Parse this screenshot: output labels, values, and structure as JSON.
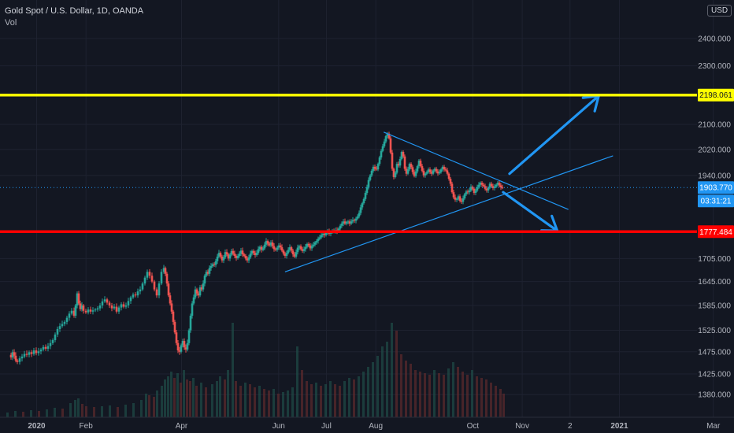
{
  "header": {
    "symbol_line": "Gold Spot / U.S. Dollar, 1D, OANDA",
    "volume_label": "Vol"
  },
  "currency_badge": "USD",
  "colors": {
    "background": "#131722",
    "up_candle": "#26a69a",
    "down_candle": "#ef5350",
    "resistance": "#ffff00",
    "support": "#ff0000",
    "trendline": "#2196f3",
    "arrow": "#2196f3",
    "current_price": "#2196f3"
  },
  "chart_data": {
    "type": "candlestick",
    "title": "Gold Spot / U.S. Dollar, 1D, OANDA",
    "y_scale": "log",
    "y_ticks": [
      2400,
      2300,
      2198.061,
      2100,
      2020,
      1940,
      1903.77,
      1777.484,
      1705,
      1645,
      1585,
      1525,
      1475,
      1425,
      1380
    ],
    "y_tick_labels": [
      "2400.000",
      "2300.000",
      "2198.061",
      "2100.000",
      "2020.000",
      "1940.000",
      "1903.770",
      "1777.484",
      "1705.000",
      "1645.000",
      "1585.000",
      "1525.000",
      "1475.000",
      "1425.000",
      "1380.000"
    ],
    "x_ticks": [
      "2020",
      "Feb",
      "Apr",
      "Jun",
      "Jul",
      "Aug",
      "Oct",
      "Nov",
      "2",
      "2021",
      "Mar"
    ],
    "x_tick_dates": [
      "2020-01-01",
      "2020-02-01",
      "2020-04-01",
      "2020-06-01",
      "2020-07-01",
      "2020-08-01",
      "2020-10-01",
      "2020-11-01",
      "2020-12-01",
      "2021-01-01",
      "2021-03-01"
    ],
    "date_range": [
      "2019-12-09",
      "2021-03-14"
    ],
    "levels": [
      {
        "label": "2198.061",
        "value": 2198.061,
        "color": "#ffff00"
      },
      {
        "label": "1777.484",
        "value": 1777.484,
        "color": "#ff0000"
      }
    ],
    "current_price": {
      "label": "1903.770",
      "value": 1903.77,
      "countdown": "03:31:21"
    },
    "trendlines": [
      {
        "from": {
          "date": "2020-08-06",
          "price": 2075
        },
        "to": {
          "date": "2020-11-30",
          "price": 1840
        }
      },
      {
        "from": {
          "date": "2020-06-05",
          "price": 1670
        },
        "to": {
          "date": "2020-12-28",
          "price": 2000
        }
      }
    ],
    "arrows": [
      {
        "from": {
          "date": "2020-10-24",
          "price": 1945
        },
        "to": {
          "date": "2020-12-19",
          "price": 2195
        }
      },
      {
        "from": {
          "date": "2020-10-20",
          "price": 1890
        },
        "to": {
          "date": "2020-11-23",
          "price": 1780
        }
      }
    ],
    "price_path": [
      [
        12,
        1468
      ],
      [
        14,
        1462
      ],
      [
        16,
        1474
      ],
      [
        18,
        1466
      ],
      [
        20,
        1455
      ],
      [
        22,
        1452
      ],
      [
        25,
        1460
      ],
      [
        28,
        1464
      ],
      [
        31,
        1470
      ],
      [
        34,
        1468
      ],
      [
        37,
        1474
      ],
      [
        40,
        1470
      ],
      [
        43,
        1478
      ],
      [
        46,
        1472
      ],
      [
        49,
        1476
      ],
      [
        52,
        1480
      ],
      [
        55,
        1486
      ],
      [
        58,
        1482
      ],
      [
        61,
        1488
      ],
      [
        64,
        1495
      ],
      [
        67,
        1502
      ],
      [
        70,
        1515
      ],
      [
        73,
        1528
      ],
      [
        76,
        1535
      ],
      [
        79,
        1540
      ],
      [
        82,
        1545
      ],
      [
        85,
        1555
      ],
      [
        88,
        1565
      ],
      [
        91,
        1572
      ],
      [
        94,
        1560
      ],
      [
        96,
        1585
      ],
      [
        98,
        1615
      ],
      [
        100,
        1590
      ],
      [
        102,
        1576
      ],
      [
        104,
        1585
      ],
      [
        106,
        1572
      ],
      [
        109,
        1568
      ],
      [
        112,
        1575
      ],
      [
        115,
        1570
      ],
      [
        118,
        1573
      ],
      [
        121,
        1575
      ],
      [
        124,
        1578
      ],
      [
        127,
        1585
      ],
      [
        130,
        1595
      ],
      [
        133,
        1600
      ],
      [
        136,
        1592
      ],
      [
        139,
        1585
      ],
      [
        142,
        1578
      ],
      [
        145,
        1582
      ],
      [
        148,
        1570
      ],
      [
        151,
        1580
      ],
      [
        154,
        1588
      ],
      [
        157,
        1582
      ],
      [
        160,
        1585
      ],
      [
        163,
        1596
      ],
      [
        166,
        1605
      ],
      [
        169,
        1612
      ],
      [
        172,
        1610
      ],
      [
        175,
        1620
      ],
      [
        178,
        1625
      ],
      [
        181,
        1640
      ],
      [
        184,
        1655
      ],
      [
        187,
        1670
      ],
      [
        190,
        1660
      ],
      [
        193,
        1645
      ],
      [
        196,
        1625
      ],
      [
        199,
        1610
      ],
      [
        202,
        1640
      ],
      [
        205,
        1670
      ],
      [
        208,
        1680
      ],
      [
        210,
        1665
      ],
      [
        212,
        1640
      ],
      [
        214,
        1610
      ],
      [
        216,
        1590
      ],
      [
        218,
        1570
      ],
      [
        220,
        1545
      ],
      [
        222,
        1520
      ],
      [
        224,
        1495
      ],
      [
        226,
        1478
      ],
      [
        228,
        1475
      ],
      [
        230,
        1490
      ],
      [
        232,
        1500
      ],
      [
        234,
        1485
      ],
      [
        236,
        1480
      ],
      [
        238,
        1495
      ],
      [
        240,
        1525
      ],
      [
        242,
        1560
      ],
      [
        244,
        1590
      ],
      [
        246,
        1605
      ],
      [
        248,
        1625
      ],
      [
        250,
        1615
      ],
      [
        252,
        1610
      ],
      [
        254,
        1630
      ],
      [
        256,
        1625
      ],
      [
        258,
        1640
      ],
      [
        260,
        1660
      ],
      [
        262,
        1670
      ],
      [
        264,
        1665
      ],
      [
        266,
        1680
      ],
      [
        268,
        1685
      ],
      [
        270,
        1690
      ],
      [
        272,
        1688
      ],
      [
        274,
        1698
      ],
      [
        276,
        1710
      ],
      [
        278,
        1720
      ],
      [
        280,
        1710
      ],
      [
        282,
        1700
      ],
      [
        284,
        1708
      ],
      [
        286,
        1722
      ],
      [
        288,
        1716
      ],
      [
        290,
        1705
      ],
      [
        292,
        1715
      ],
      [
        294,
        1725
      ],
      [
        296,
        1718
      ],
      [
        298,
        1712
      ],
      [
        300,
        1706
      ],
      [
        302,
        1712
      ],
      [
        304,
        1718
      ],
      [
        306,
        1726
      ],
      [
        308,
        1716
      ],
      [
        310,
        1712
      ],
      [
        312,
        1705
      ],
      [
        314,
        1700
      ],
      [
        316,
        1708
      ],
      [
        318,
        1718
      ],
      [
        320,
        1725
      ],
      [
        322,
        1720
      ],
      [
        324,
        1714
      ],
      [
        326,
        1720
      ],
      [
        328,
        1730
      ],
      [
        330,
        1736
      ],
      [
        332,
        1728
      ],
      [
        334,
        1732
      ],
      [
        336,
        1742
      ],
      [
        338,
        1752
      ],
      [
        340,
        1745
      ],
      [
        342,
        1740
      ],
      [
        344,
        1748
      ],
      [
        346,
        1738
      ],
      [
        348,
        1730
      ],
      [
        350,
        1728
      ],
      [
        352,
        1734
      ],
      [
        354,
        1740
      ],
      [
        356,
        1735
      ],
      [
        358,
        1726
      ],
      [
        360,
        1718
      ],
      [
        362,
        1712
      ],
      [
        364,
        1720
      ],
      [
        366,
        1728
      ],
      [
        368,
        1735
      ],
      [
        370,
        1726
      ],
      [
        372,
        1716
      ],
      [
        374,
        1710
      ],
      [
        376,
        1722
      ],
      [
        378,
        1734
      ],
      [
        380,
        1738
      ],
      [
        382,
        1730
      ],
      [
        384,
        1725
      ],
      [
        386,
        1730
      ],
      [
        388,
        1736
      ],
      [
        390,
        1744
      ],
      [
        392,
        1740
      ],
      [
        394,
        1732
      ],
      [
        396,
        1738
      ],
      [
        398,
        1742
      ],
      [
        400,
        1748
      ],
      [
        402,
        1752
      ],
      [
        404,
        1758
      ],
      [
        406,
        1762
      ],
      [
        408,
        1768
      ],
      [
        410,
        1772
      ],
      [
        412,
        1768
      ],
      [
        414,
        1774
      ],
      [
        416,
        1778
      ],
      [
        418,
        1772
      ],
      [
        420,
        1776
      ],
      [
        422,
        1780
      ],
      [
        424,
        1778
      ],
      [
        426,
        1782
      ],
      [
        428,
        1778
      ],
      [
        430,
        1786
      ],
      [
        432,
        1794
      ],
      [
        434,
        1800
      ],
      [
        436,
        1806
      ],
      [
        438,
        1800
      ],
      [
        440,
        1804
      ],
      [
        442,
        1806
      ],
      [
        444,
        1800
      ],
      [
        446,
        1806
      ],
      [
        448,
        1810
      ],
      [
        450,
        1808
      ],
      [
        452,
        1814
      ],
      [
        454,
        1820
      ],
      [
        456,
        1830
      ],
      [
        458,
        1846
      ],
      [
        460,
        1858
      ],
      [
        462,
        1870
      ],
      [
        464,
        1888
      ],
      [
        466,
        1905
      ],
      [
        468,
        1926
      ],
      [
        470,
        1940
      ],
      [
        472,
        1954
      ],
      [
        474,
        1966
      ],
      [
        476,
        1960
      ],
      [
        478,
        1958
      ],
      [
        480,
        1975
      ],
      [
        482,
        1995
      ],
      [
        484,
        2015
      ],
      [
        486,
        2030
      ],
      [
        488,
        2045
      ],
      [
        490,
        2062
      ],
      [
        492,
        2070
      ],
      [
        494,
        2055
      ],
      [
        496,
        2010
      ],
      [
        498,
        1960
      ],
      [
        500,
        1935
      ],
      [
        502,
        1948
      ],
      [
        504,
        1975
      ],
      [
        506,
        1970
      ],
      [
        508,
        1990
      ],
      [
        510,
        2012
      ],
      [
        512,
        1998
      ],
      [
        514,
        1960
      ],
      [
        516,
        1945
      ],
      [
        518,
        1958
      ],
      [
        520,
        1975
      ],
      [
        522,
        1965
      ],
      [
        524,
        1950
      ],
      [
        526,
        1938
      ],
      [
        528,
        1952
      ],
      [
        530,
        1968
      ],
      [
        532,
        1985
      ],
      [
        534,
        1968
      ],
      [
        536,
        1954
      ],
      [
        538,
        1940
      ],
      [
        540,
        1945
      ],
      [
        542,
        1950
      ],
      [
        544,
        1958
      ],
      [
        546,
        1950
      ],
      [
        548,
        1945
      ],
      [
        550,
        1955
      ],
      [
        552,
        1960
      ],
      [
        554,
        1952
      ],
      [
        556,
        1946
      ],
      [
        558,
        1950
      ],
      [
        560,
        1958
      ],
      [
        562,
        1966
      ],
      [
        564,
        1958
      ],
      [
        566,
        1955
      ],
      [
        568,
        1945
      ],
      [
        570,
        1930
      ],
      [
        572,
        1915
      ],
      [
        574,
        1890
      ],
      [
        576,
        1875
      ],
      [
        578,
        1868
      ],
      [
        580,
        1870
      ],
      [
        582,
        1878
      ],
      [
        584,
        1865
      ],
      [
        586,
        1862
      ],
      [
        588,
        1872
      ],
      [
        590,
        1884
      ],
      [
        592,
        1892
      ],
      [
        594,
        1890
      ],
      [
        596,
        1895
      ],
      [
        598,
        1906
      ],
      [
        600,
        1900
      ],
      [
        602,
        1888
      ],
      [
        604,
        1895
      ],
      [
        606,
        1905
      ],
      [
        608,
        1912
      ],
      [
        610,
        1918
      ],
      [
        612,
        1912
      ],
      [
        614,
        1908
      ],
      [
        616,
        1900
      ],
      [
        618,
        1895
      ],
      [
        620,
        1903
      ],
      [
        622,
        1915
      ],
      [
        624,
        1908
      ],
      [
        626,
        1902
      ],
      [
        628,
        1906
      ],
      [
        630,
        1912
      ],
      [
        632,
        1918
      ],
      [
        634,
        1910
      ],
      [
        636,
        1904
      ],
      [
        638,
        1903
      ]
    ],
    "volume": [
      [
        10,
        6
      ],
      [
        20,
        8
      ],
      [
        30,
        7
      ],
      [
        40,
        9
      ],
      [
        50,
        8
      ],
      [
        60,
        10
      ],
      [
        70,
        12
      ],
      [
        80,
        11
      ],
      [
        90,
        18
      ],
      [
        96,
        22
      ],
      [
        100,
        24
      ],
      [
        105,
        17
      ],
      [
        110,
        14
      ],
      [
        120,
        13
      ],
      [
        130,
        14
      ],
      [
        140,
        15
      ],
      [
        150,
        13
      ],
      [
        160,
        16
      ],
      [
        170,
        18
      ],
      [
        180,
        22
      ],
      [
        186,
        30
      ],
      [
        190,
        28
      ],
      [
        196,
        26
      ],
      [
        200,
        34
      ],
      [
        206,
        40
      ],
      [
        210,
        48
      ],
      [
        214,
        52
      ],
      [
        218,
        58
      ],
      [
        222,
        50
      ],
      [
        226,
        56
      ],
      [
        230,
        44
      ],
      [
        234,
        60
      ],
      [
        238,
        48
      ],
      [
        242,
        46
      ],
      [
        246,
        50
      ],
      [
        250,
        40
      ],
      [
        256,
        44
      ],
      [
        262,
        38
      ],
      [
        270,
        42
      ],
      [
        276,
        46
      ],
      [
        280,
        52
      ],
      [
        286,
        48
      ],
      [
        290,
        60
      ],
      [
        296,
        120
      ],
      [
        300,
        46
      ],
      [
        306,
        40
      ],
      [
        312,
        44
      ],
      [
        318,
        42
      ],
      [
        324,
        38
      ],
      [
        330,
        40
      ],
      [
        336,
        36
      ],
      [
        342,
        34
      ],
      [
        348,
        36
      ],
      [
        354,
        30
      ],
      [
        360,
        32
      ],
      [
        366,
        34
      ],
      [
        372,
        38
      ],
      [
        378,
        90
      ],
      [
        384,
        60
      ],
      [
        390,
        46
      ],
      [
        396,
        42
      ],
      [
        402,
        44
      ],
      [
        408,
        40
      ],
      [
        414,
        42
      ],
      [
        420,
        46
      ],
      [
        426,
        42
      ],
      [
        432,
        40
      ],
      [
        438,
        46
      ],
      [
        444,
        50
      ],
      [
        450,
        48
      ],
      [
        456,
        52
      ],
      [
        462,
        58
      ],
      [
        468,
        64
      ],
      [
        474,
        70
      ],
      [
        480,
        78
      ],
      [
        486,
        90
      ],
      [
        492,
        96
      ],
      [
        498,
        120
      ],
      [
        504,
        110
      ],
      [
        510,
        80
      ],
      [
        516,
        72
      ],
      [
        522,
        68
      ],
      [
        528,
        60
      ],
      [
        534,
        58
      ],
      [
        540,
        56
      ],
      [
        546,
        54
      ],
      [
        552,
        60
      ],
      [
        558,
        56
      ],
      [
        564,
        54
      ],
      [
        570,
        62
      ],
      [
        576,
        70
      ],
      [
        582,
        64
      ],
      [
        588,
        58
      ],
      [
        594,
        54
      ],
      [
        600,
        60
      ],
      [
        606,
        52
      ],
      [
        612,
        50
      ],
      [
        618,
        48
      ],
      [
        624,
        44
      ],
      [
        630,
        40
      ],
      [
        636,
        36
      ],
      [
        640,
        30
      ]
    ]
  }
}
